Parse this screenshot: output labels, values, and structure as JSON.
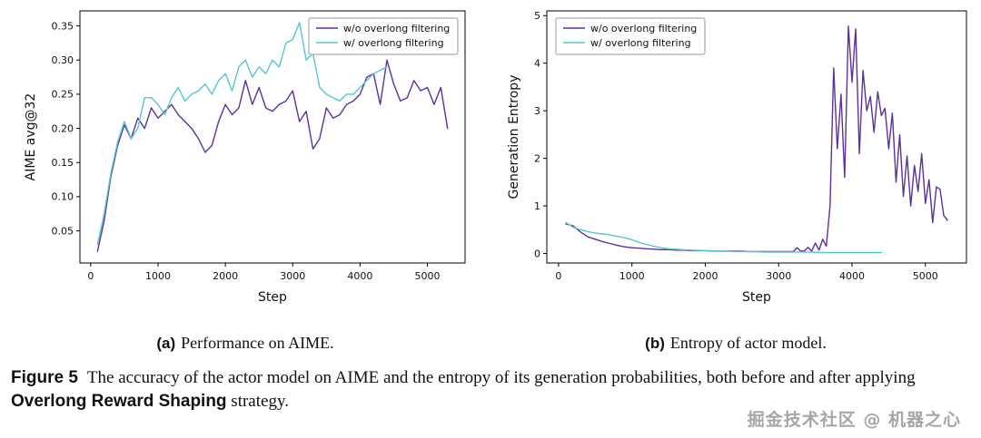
{
  "figure": {
    "subcaptions": {
      "a_label": "(a)",
      "a_text": "Performance on AIME.",
      "b_label": "(b)",
      "b_text": "Entropy of actor model."
    },
    "caption": {
      "label": "Figure 5",
      "text_before": "The accuracy of the actor model on AIME and the entropy of its generation probabilities, both before and after applying ",
      "bold_phrase": "Overlong Reward Shaping",
      "text_after": " strategy."
    },
    "watermark": "掘金技术社区 @ 机器之心"
  },
  "colors": {
    "purple": "#5e2f9e",
    "cyan": "#55c7cf",
    "axis": "#000000",
    "legend_border": "#9a9a9a"
  },
  "chart_data": [
    {
      "type": "line",
      "title": "",
      "xlabel": "Step",
      "ylabel": "AIME avg@32",
      "xlim": [
        -160,
        5560
      ],
      "ylim": [
        0.003,
        0.372
      ],
      "xticks": [
        0,
        1000,
        2000,
        3000,
        4000,
        5000
      ],
      "yticks": [
        0.05,
        0.1,
        0.15,
        0.2,
        0.25,
        0.3,
        0.35
      ],
      "ytick_decimals": 2,
      "grid": false,
      "legend": {
        "position": "upper right",
        "entries": [
          "w/o overlong filtering",
          "w/ overlong filtering"
        ]
      },
      "series": [
        {
          "name": "w/o overlong filtering",
          "color": "#5e2f9e",
          "points": [
            [
              100,
              0.02
            ],
            [
              200,
              0.065
            ],
            [
              300,
              0.13
            ],
            [
              400,
              0.175
            ],
            [
              500,
              0.205
            ],
            [
              600,
              0.185
            ],
            [
              700,
              0.215
            ],
            [
              800,
              0.2
            ],
            [
              900,
              0.23
            ],
            [
              1000,
              0.215
            ],
            [
              1100,
              0.225
            ],
            [
              1200,
              0.235
            ],
            [
              1300,
              0.22
            ],
            [
              1400,
              0.21
            ],
            [
              1500,
              0.2
            ],
            [
              1600,
              0.185
            ],
            [
              1700,
              0.165
            ],
            [
              1800,
              0.175
            ],
            [
              1900,
              0.21
            ],
            [
              2000,
              0.235
            ],
            [
              2100,
              0.22
            ],
            [
              2200,
              0.23
            ],
            [
              2300,
              0.27
            ],
            [
              2400,
              0.235
            ],
            [
              2500,
              0.26
            ],
            [
              2600,
              0.23
            ],
            [
              2700,
              0.225
            ],
            [
              2800,
              0.235
            ],
            [
              2900,
              0.24
            ],
            [
              3000,
              0.255
            ],
            [
              3100,
              0.21
            ],
            [
              3200,
              0.225
            ],
            [
              3300,
              0.17
            ],
            [
              3400,
              0.185
            ],
            [
              3500,
              0.23
            ],
            [
              3600,
              0.215
            ],
            [
              3700,
              0.22
            ],
            [
              3800,
              0.235
            ],
            [
              3900,
              0.24
            ],
            [
              4000,
              0.25
            ],
            [
              4100,
              0.275
            ],
            [
              4200,
              0.28
            ],
            [
              4300,
              0.235
            ],
            [
              4400,
              0.3
            ],
            [
              4500,
              0.265
            ],
            [
              4600,
              0.24
            ],
            [
              4700,
              0.245
            ],
            [
              4800,
              0.27
            ],
            [
              4900,
              0.255
            ],
            [
              5000,
              0.26
            ],
            [
              5100,
              0.235
            ],
            [
              5200,
              0.26
            ],
            [
              5300,
              0.2
            ]
          ]
        },
        {
          "name": "w/ overlong filtering",
          "color": "#55c7cf",
          "points": [
            [
              100,
              0.03
            ],
            [
              200,
              0.075
            ],
            [
              300,
              0.135
            ],
            [
              400,
              0.18
            ],
            [
              500,
              0.21
            ],
            [
              600,
              0.185
            ],
            [
              700,
              0.2
            ],
            [
              800,
              0.245
            ],
            [
              900,
              0.245
            ],
            [
              1000,
              0.235
            ],
            [
              1100,
              0.22
            ],
            [
              1200,
              0.245
            ],
            [
              1300,
              0.26
            ],
            [
              1400,
              0.24
            ],
            [
              1500,
              0.25
            ],
            [
              1600,
              0.255
            ],
            [
              1700,
              0.265
            ],
            [
              1800,
              0.25
            ],
            [
              1900,
              0.27
            ],
            [
              2000,
              0.28
            ],
            [
              2100,
              0.255
            ],
            [
              2200,
              0.29
            ],
            [
              2300,
              0.3
            ],
            [
              2400,
              0.275
            ],
            [
              2500,
              0.29
            ],
            [
              2600,
              0.28
            ],
            [
              2700,
              0.3
            ],
            [
              2800,
              0.29
            ],
            [
              2900,
              0.325
            ],
            [
              3000,
              0.33
            ],
            [
              3100,
              0.355
            ],
            [
              3200,
              0.3
            ],
            [
              3300,
              0.31
            ],
            [
              3400,
              0.26
            ],
            [
              3500,
              0.25
            ],
            [
              3600,
              0.245
            ],
            [
              3700,
              0.24
            ],
            [
              3800,
              0.25
            ],
            [
              3900,
              0.25
            ],
            [
              4000,
              0.26
            ],
            [
              4100,
              0.27
            ],
            [
              4200,
              0.28
            ],
            [
              4300,
              0.285
            ],
            [
              4400,
              0.29
            ]
          ]
        }
      ]
    },
    {
      "type": "line",
      "title": "",
      "xlabel": "Step",
      "ylabel": "Generation Entropy",
      "xlim": [
        -160,
        5560
      ],
      "ylim": [
        -0.2,
        5.1
      ],
      "xticks": [
        0,
        1000,
        2000,
        3000,
        4000,
        5000
      ],
      "yticks": [
        0,
        1,
        2,
        3,
        4,
        5
      ],
      "ytick_decimals": 0,
      "grid": false,
      "legend": {
        "position": "upper left",
        "entries": [
          "w/o overlong filtering",
          "w/ overlong filtering"
        ]
      },
      "series": [
        {
          "name": "w/o overlong filtering",
          "color": "#5e2f9e",
          "points": [
            [
              100,
              0.62
            ],
            [
              200,
              0.58
            ],
            [
              300,
              0.45
            ],
            [
              400,
              0.35
            ],
            [
              500,
              0.3
            ],
            [
              600,
              0.25
            ],
            [
              700,
              0.21
            ],
            [
              800,
              0.17
            ],
            [
              900,
              0.14
            ],
            [
              1000,
              0.12
            ],
            [
              1100,
              0.11
            ],
            [
              1200,
              0.1
            ],
            [
              1300,
              0.09
            ],
            [
              1400,
              0.08
            ],
            [
              1500,
              0.08
            ],
            [
              1600,
              0.07
            ],
            [
              1700,
              0.07
            ],
            [
              1800,
              0.06
            ],
            [
              1900,
              0.06
            ],
            [
              2000,
              0.06
            ],
            [
              2100,
              0.05
            ],
            [
              2200,
              0.05
            ],
            [
              2300,
              0.05
            ],
            [
              2400,
              0.05
            ],
            [
              2500,
              0.05
            ],
            [
              2600,
              0.04
            ],
            [
              2700,
              0.04
            ],
            [
              2800,
              0.04
            ],
            [
              2900,
              0.04
            ],
            [
              3000,
              0.04
            ],
            [
              3100,
              0.04
            ],
            [
              3200,
              0.04
            ],
            [
              3250,
              0.12
            ],
            [
              3300,
              0.05
            ],
            [
              3350,
              0.05
            ],
            [
              3400,
              0.13
            ],
            [
              3450,
              0.05
            ],
            [
              3500,
              0.22
            ],
            [
              3550,
              0.07
            ],
            [
              3600,
              0.3
            ],
            [
              3650,
              0.15
            ],
            [
              3700,
              1.0
            ],
            [
              3750,
              3.9
            ],
            [
              3800,
              2.2
            ],
            [
              3850,
              3.35
            ],
            [
              3900,
              1.6
            ],
            [
              3950,
              4.78
            ],
            [
              4000,
              3.6
            ],
            [
              4050,
              4.72
            ],
            [
              4100,
              2.1
            ],
            [
              4150,
              3.85
            ],
            [
              4200,
              3.0
            ],
            [
              4250,
              3.3
            ],
            [
              4300,
              2.55
            ],
            [
              4350,
              3.4
            ],
            [
              4400,
              2.9
            ],
            [
              4450,
              3.05
            ],
            [
              4500,
              2.2
            ],
            [
              4550,
              2.95
            ],
            [
              4600,
              1.5
            ],
            [
              4650,
              2.5
            ],
            [
              4700,
              1.2
            ],
            [
              4750,
              2.05
            ],
            [
              4800,
              1.0
            ],
            [
              4850,
              1.85
            ],
            [
              4900,
              1.3
            ],
            [
              4950,
              2.1
            ],
            [
              5000,
              1.05
            ],
            [
              5050,
              1.55
            ],
            [
              5100,
              0.65
            ],
            [
              5150,
              1.4
            ],
            [
              5200,
              1.35
            ],
            [
              5250,
              0.8
            ],
            [
              5300,
              0.7
            ]
          ]
        },
        {
          "name": "w/ overlong filtering",
          "color": "#55c7cf",
          "points": [
            [
              100,
              0.65
            ],
            [
              200,
              0.55
            ],
            [
              300,
              0.5
            ],
            [
              400,
              0.46
            ],
            [
              500,
              0.43
            ],
            [
              600,
              0.41
            ],
            [
              700,
              0.39
            ],
            [
              800,
              0.36
            ],
            [
              900,
              0.33
            ],
            [
              1000,
              0.29
            ],
            [
              1100,
              0.23
            ],
            [
              1200,
              0.19
            ],
            [
              1300,
              0.15
            ],
            [
              1400,
              0.12
            ],
            [
              1500,
              0.1
            ],
            [
              1600,
              0.09
            ],
            [
              1700,
              0.08
            ],
            [
              1800,
              0.07
            ],
            [
              2000,
              0.06
            ],
            [
              2200,
              0.05
            ],
            [
              2400,
              0.04
            ],
            [
              2600,
              0.04
            ],
            [
              2800,
              0.03
            ],
            [
              3000,
              0.03
            ],
            [
              3200,
              0.03
            ],
            [
              3400,
              0.03
            ],
            [
              3600,
              0.02
            ],
            [
              3800,
              0.02
            ],
            [
              4000,
              0.02
            ],
            [
              4200,
              0.02
            ],
            [
              4400,
              0.02
            ]
          ]
        }
      ]
    }
  ]
}
